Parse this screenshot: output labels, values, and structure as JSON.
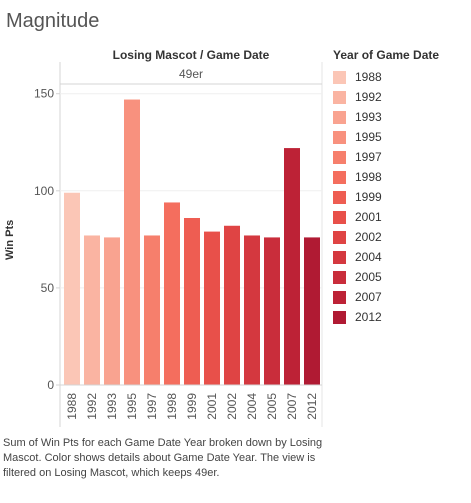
{
  "title": "Magnitude",
  "column_header": "Losing Mascot  /  Game Date",
  "pane_label": "49er",
  "legend": {
    "title": "Year of Game Date",
    "items": [
      {
        "label": "1988",
        "color": "#fbc6b6"
      },
      {
        "label": "1992",
        "color": "#fab4a2"
      },
      {
        "label": "1993",
        "color": "#f9a390"
      },
      {
        "label": "1995",
        "color": "#f8917e"
      },
      {
        "label": "1997",
        "color": "#f67f6c"
      },
      {
        "label": "1998",
        "color": "#f46e5e"
      },
      {
        "label": "1999",
        "color": "#ee5d52"
      },
      {
        "label": "2001",
        "color": "#e8504a"
      },
      {
        "label": "2002",
        "color": "#df4444"
      },
      {
        "label": "2004",
        "color": "#d4383f"
      },
      {
        "label": "2005",
        "color": "#c92d3b"
      },
      {
        "label": "2007",
        "color": "#bd2236"
      },
      {
        "label": "2012",
        "color": "#b01a33"
      }
    ]
  },
  "caption": "Sum of Win Pts for each Game Date Year broken down by Losing Mascot.  Color shows details about Game Date Year. The view is filtered on Losing Mascot, which keeps 49er.",
  "chart_data": {
    "type": "bar",
    "title": "Magnitude",
    "categories": [
      "1988",
      "1992",
      "1993",
      "1995",
      "1997",
      "1998",
      "1999",
      "2001",
      "2002",
      "2004",
      "2005",
      "2007",
      "2012"
    ],
    "values": [
      99,
      77,
      76,
      147,
      77,
      94,
      86,
      79,
      82,
      77,
      76,
      122,
      76
    ],
    "colors": [
      "#fbc6b6",
      "#fab4a2",
      "#f9a390",
      "#f8917e",
      "#f67f6c",
      "#f46e5e",
      "#ee5d52",
      "#e8504a",
      "#df4444",
      "#d4383f",
      "#c92d3b",
      "#bd2236",
      "#b01a33"
    ],
    "ylabel": "Win Pts",
    "ylim": [
      0,
      155
    ],
    "yticks": [
      0,
      50,
      100,
      150
    ],
    "grid": true,
    "legend_position": "right"
  }
}
